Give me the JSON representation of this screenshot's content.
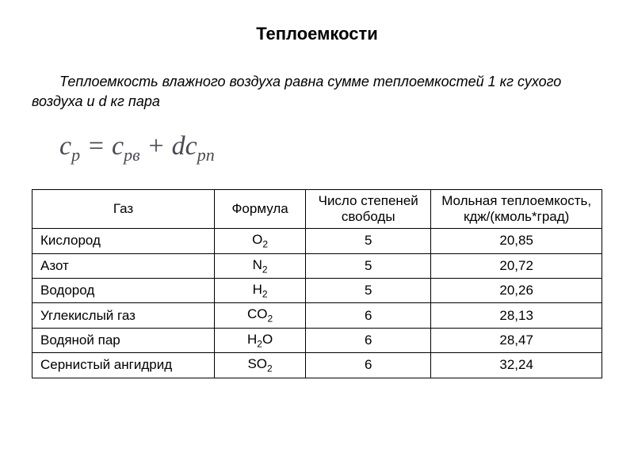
{
  "title": "Теплоемкости",
  "intro": "Теплоемкость влажного воздуха равна сумме теплоемкостей 1 кг сухого воздуха и d кг пара",
  "formula": {
    "c": "c",
    "p": "p",
    "eq": " = ",
    "c1": "c",
    "p1": "pв",
    "plus": " + ",
    "d": "d",
    "c2": "c",
    "p2": "pп"
  },
  "table": {
    "headers": {
      "gas": "Газ",
      "formula": "Формула",
      "dof": "Число степеней свободы",
      "cap": "Мольная теплоемкость, кдж/(кмоль*град)"
    },
    "rows": [
      {
        "gas": "Кислород",
        "fb": "O",
        "fs": "2",
        "dof": "5",
        "cap": "20,85"
      },
      {
        "gas": "Азот",
        "fb": "N",
        "fs": "2",
        "dof": "5",
        "cap": "20,72"
      },
      {
        "gas": "Водород",
        "fb": "H",
        "fs": "2",
        "dof": "5",
        "cap": "20,26"
      },
      {
        "gas": "Углекислый газ",
        "fb": "CO",
        "fs": "2",
        "dof": "6",
        "cap": "28,13"
      },
      {
        "gas": "Водяной пар",
        "fb": "H",
        "fs": "2",
        "fb2": "O",
        "dof": "6",
        "cap": "28,47"
      },
      {
        "gas": "Сернистый ангидрид",
        "fb": "SO",
        "fs": "2",
        "dof": "6",
        "cap": "32,24"
      }
    ]
  },
  "col_widths": {
    "gas": "32%",
    "formula": "16%",
    "dof": "22%",
    "cap": "30%"
  }
}
